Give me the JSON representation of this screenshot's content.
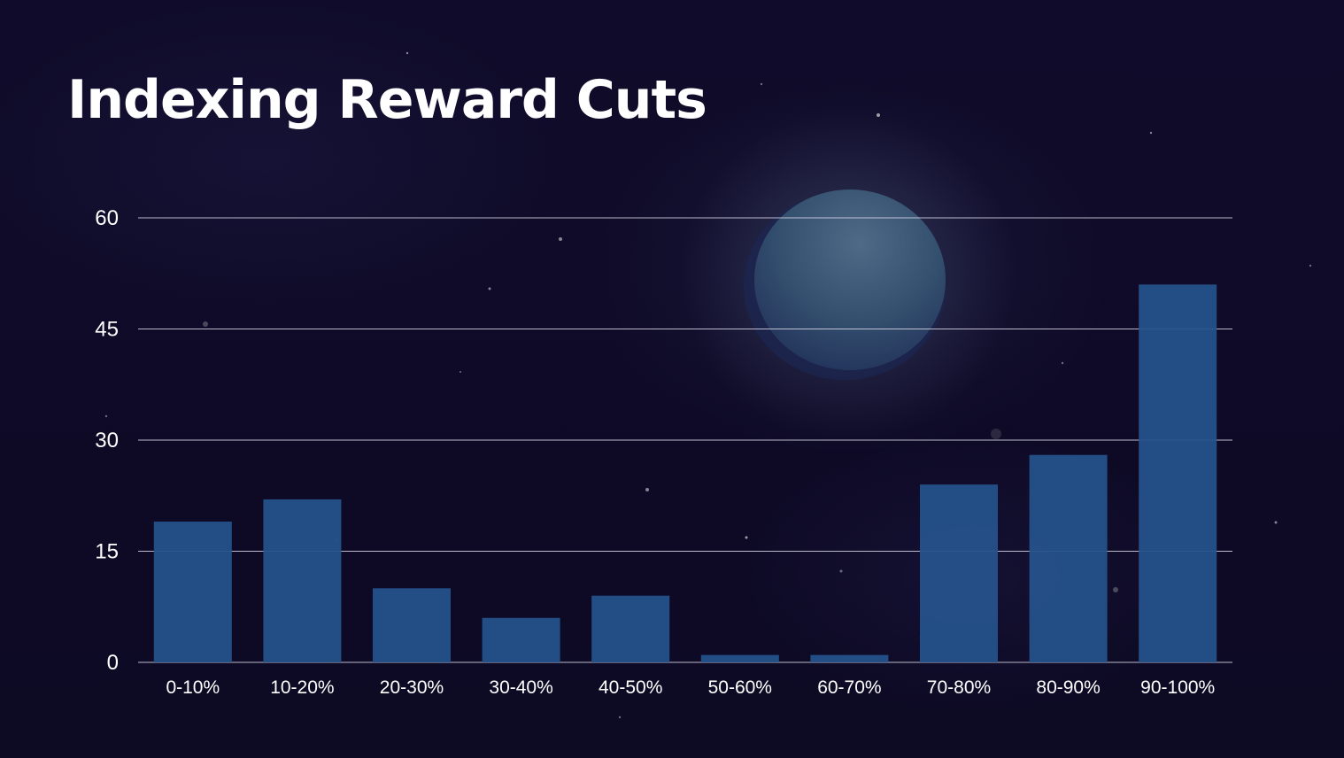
{
  "title": "Indexing Reward Cuts",
  "colors": {
    "background": "#0e0a26",
    "bar": "#25528a",
    "gridline": "#d8d8e8",
    "text": "#ffffff"
  },
  "chart_data": {
    "type": "bar",
    "title": "Indexing Reward Cuts",
    "xlabel": "",
    "ylabel": "",
    "categories": [
      "0-10%",
      "10-20%",
      "20-30%",
      "30-40%",
      "40-50%",
      "50-60%",
      "60-70%",
      "70-80%",
      "80-90%",
      "90-100%"
    ],
    "values": [
      19,
      22,
      10,
      6,
      9,
      1,
      1,
      24,
      28,
      51
    ],
    "ylim": [
      0,
      60
    ],
    "yticks": [
      0,
      15,
      30,
      45,
      60
    ],
    "grid": true,
    "legend": "none"
  }
}
